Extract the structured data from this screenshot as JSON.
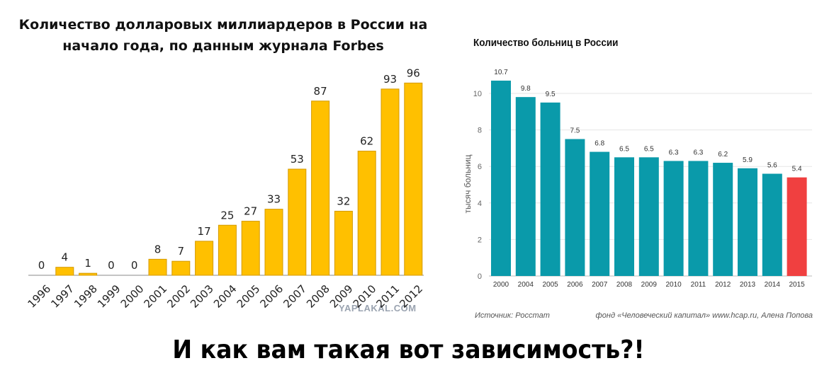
{
  "chart_data": [
    {
      "type": "bar",
      "title": "Количество долларовых миллиардеров в России на начало года, по данным журнала Forbes",
      "categories": [
        "1996",
        "1997",
        "1998",
        "1999",
        "2000",
        "2001",
        "2002",
        "2003",
        "2004",
        "2005",
        "2006",
        "2007",
        "2008",
        "2009",
        "2010",
        "2011",
        "2012"
      ],
      "values": [
        0,
        4,
        1,
        0,
        0,
        8,
        7,
        17,
        25,
        27,
        33,
        53,
        87,
        32,
        62,
        93,
        96
      ],
      "color": "#FFC000",
      "grid": false,
      "watermark": "YAPLAKAL.COM"
    },
    {
      "type": "bar",
      "title": "Количество больниц в России",
      "ylabel": "тысяч больниц",
      "categories": [
        "2000",
        "2004",
        "2005",
        "2006",
        "2007",
        "2008",
        "2009",
        "2010",
        "2011",
        "2012",
        "2013",
        "2014",
        "2015"
      ],
      "values": [
        10.7,
        9.8,
        9.5,
        7.5,
        6.8,
        6.5,
        6.5,
        6.3,
        6.3,
        6.2,
        5.9,
        5.6,
        5.4
      ],
      "yticks": [
        0,
        2,
        4,
        6,
        8,
        10
      ],
      "ylim": [
        0,
        11
      ],
      "grid": true,
      "color": "#0A9AAA",
      "highlight_color": "#F04040",
      "source": "Источник: Росстат",
      "credit": "фонд «Человеческий капитал» www.hcap.ru, Алена Попова"
    }
  ],
  "caption": "И как вам такая вот зависимость?!"
}
